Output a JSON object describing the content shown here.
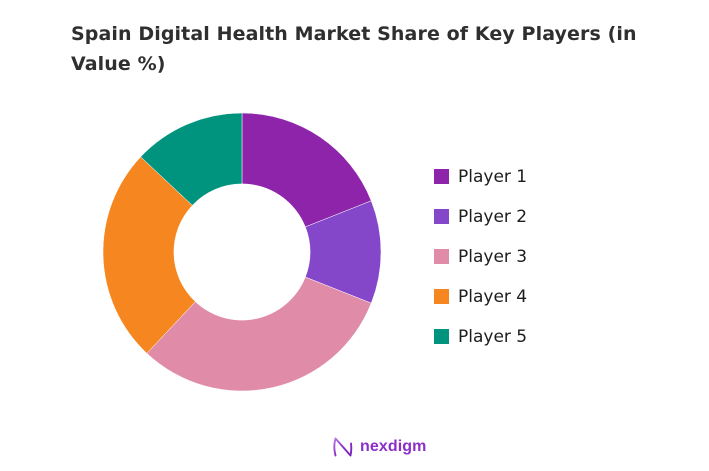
{
  "title_line1": "Spain Digital Health Market Share of Key Players (in",
  "title_line2": "Value %)",
  "chart_data": {
    "type": "donut",
    "title": "Spain Digital Health Market Share of Key Players (in Value %)",
    "categories": [
      "Player 1",
      "Player 2",
      "Player 3",
      "Player 4",
      "Player 5"
    ],
    "values": [
      19,
      12,
      31,
      25,
      13
    ],
    "unit": "percent of market value",
    "colors": [
      "#8e24aa",
      "#8447c9",
      "#e08ca8",
      "#f6861f",
      "#00947f"
    ],
    "legend_position": "right",
    "start_angle_deg": 0,
    "direction": "clockwise",
    "inner_radius_ratio": 0.49
  },
  "footer": {
    "logo_text": "nexdigm",
    "logo_color": "#8b2fc6"
  }
}
